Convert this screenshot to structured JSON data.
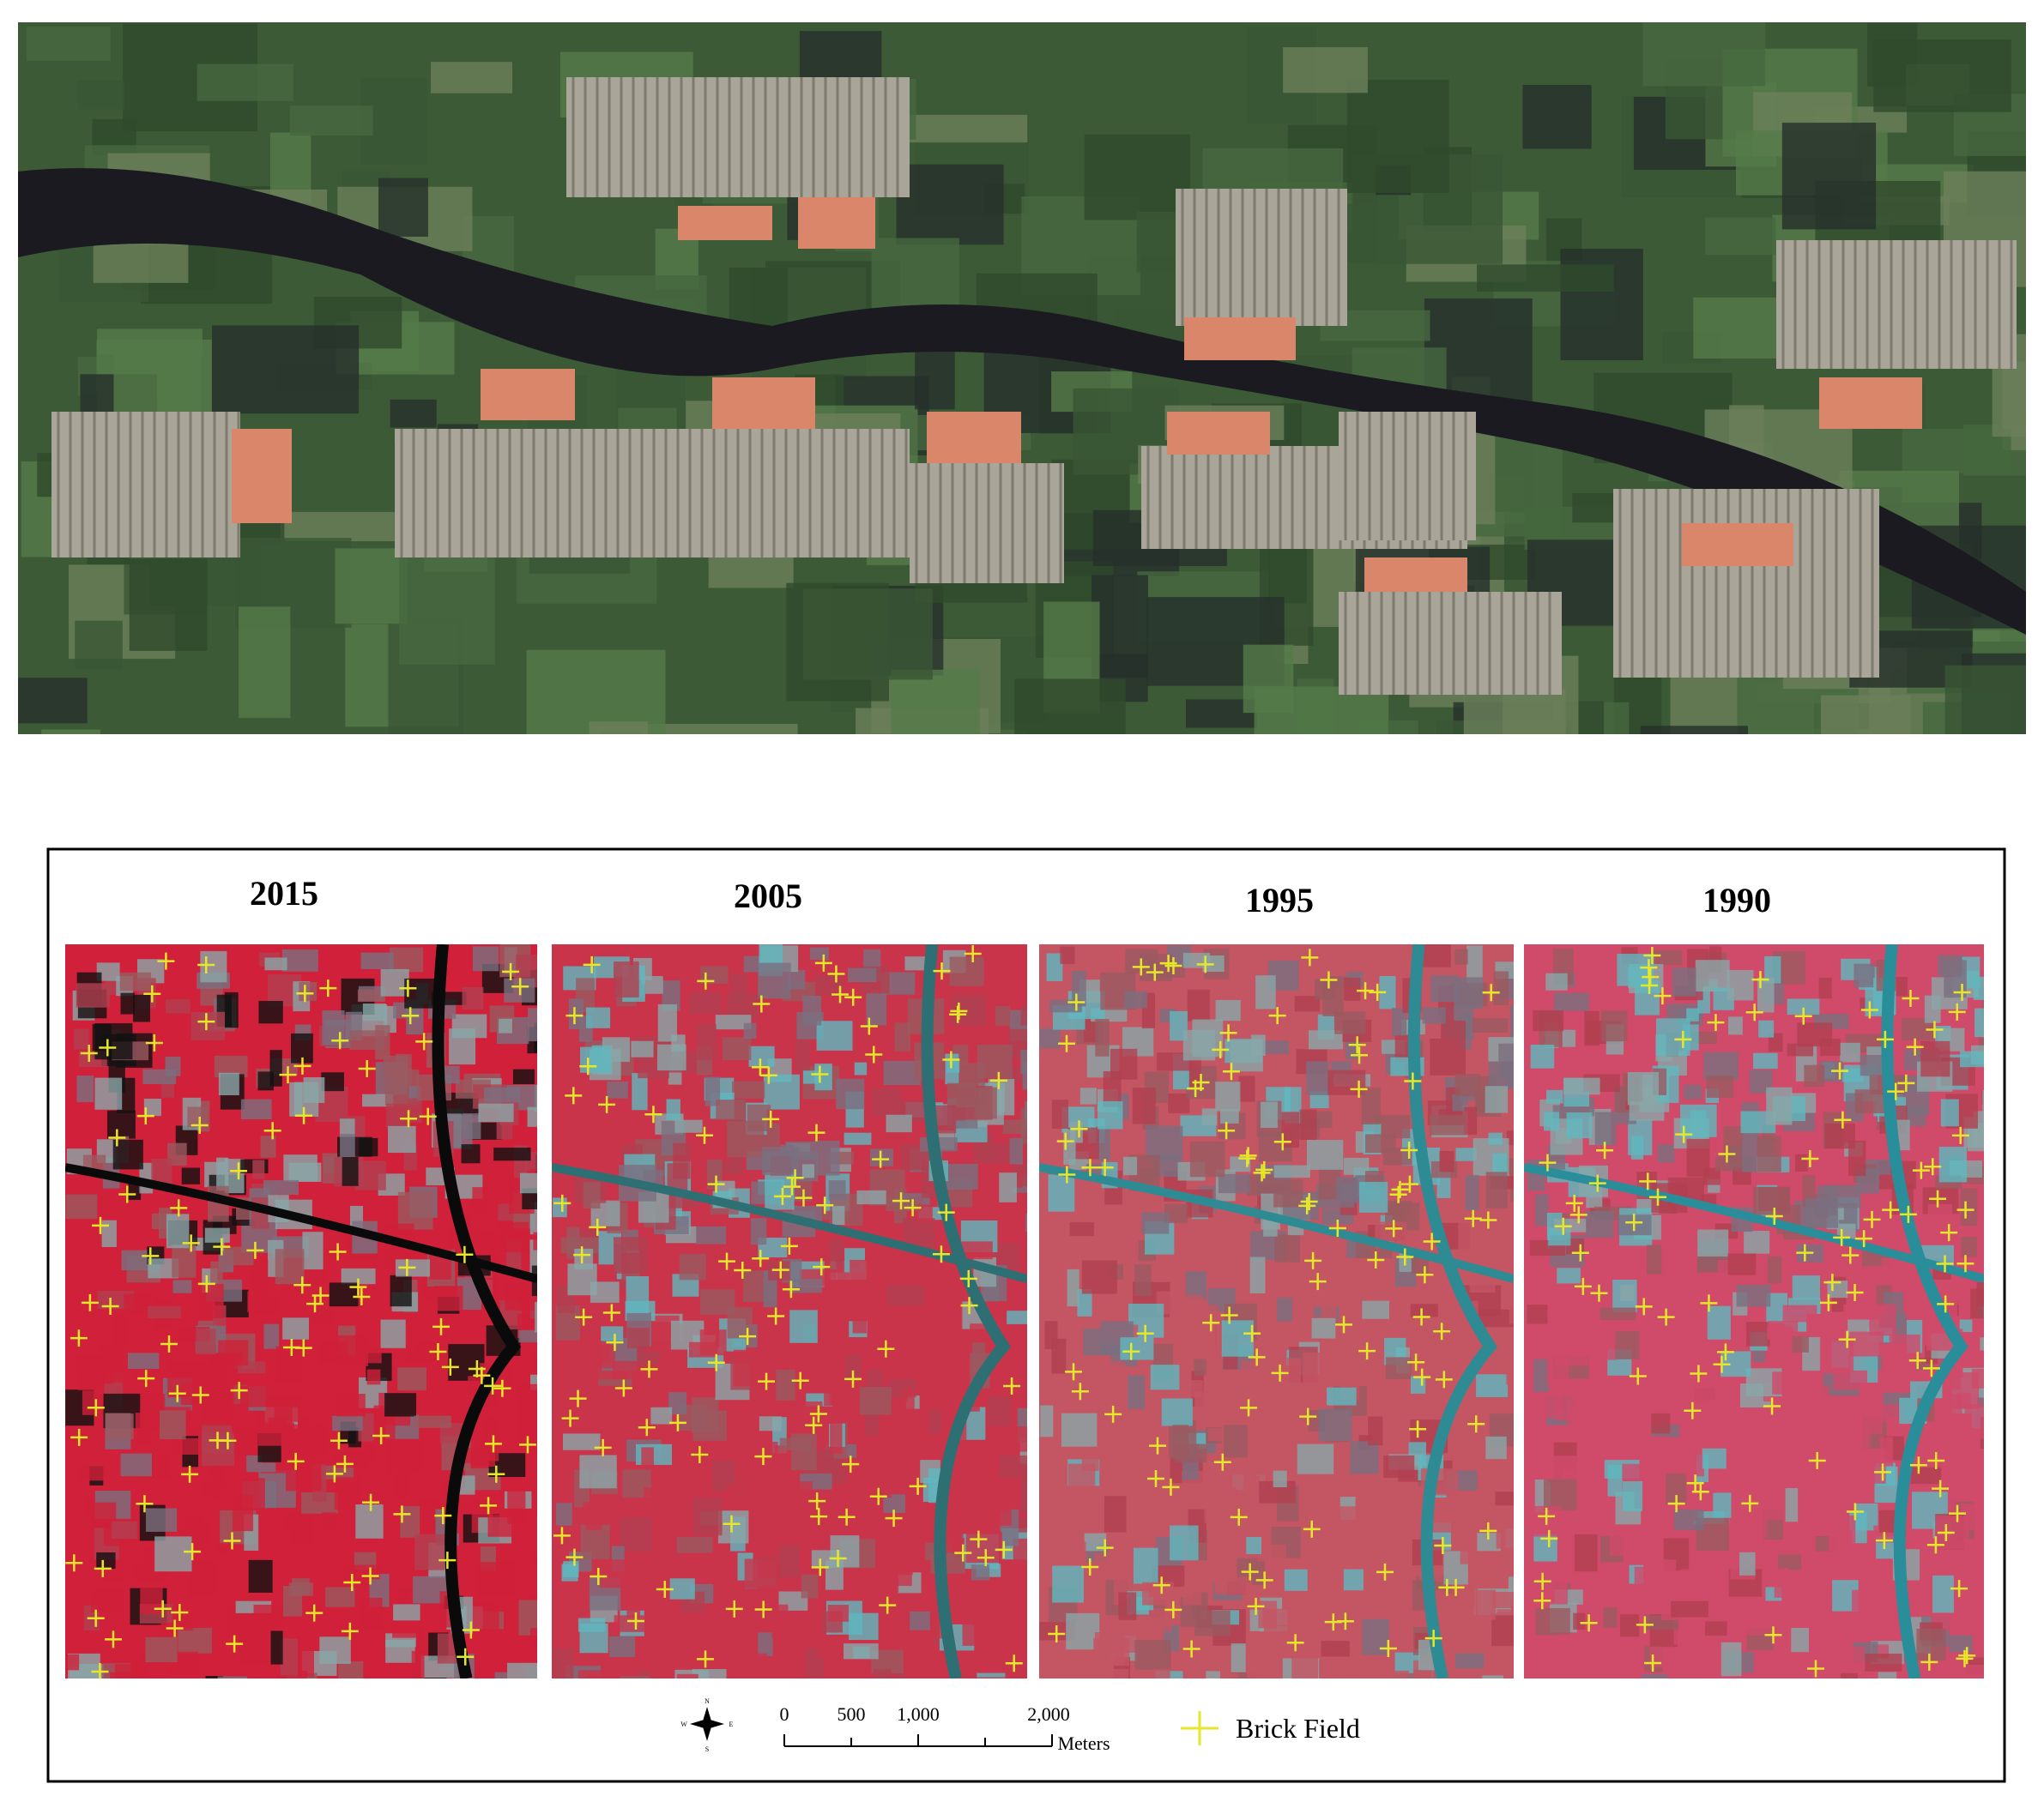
{
  "panels": [
    {
      "title": "2015"
    },
    {
      "title": "2005"
    },
    {
      "title": "1995"
    },
    {
      "title": "1990"
    }
  ],
  "scale_bar": {
    "labels": [
      "0",
      "500",
      "1,000",
      "2,000"
    ],
    "unit": "Meters"
  },
  "legend": {
    "label": "Brick Field"
  },
  "compass": {
    "n": "N",
    "s": "S",
    "e": "E",
    "w": "W"
  }
}
